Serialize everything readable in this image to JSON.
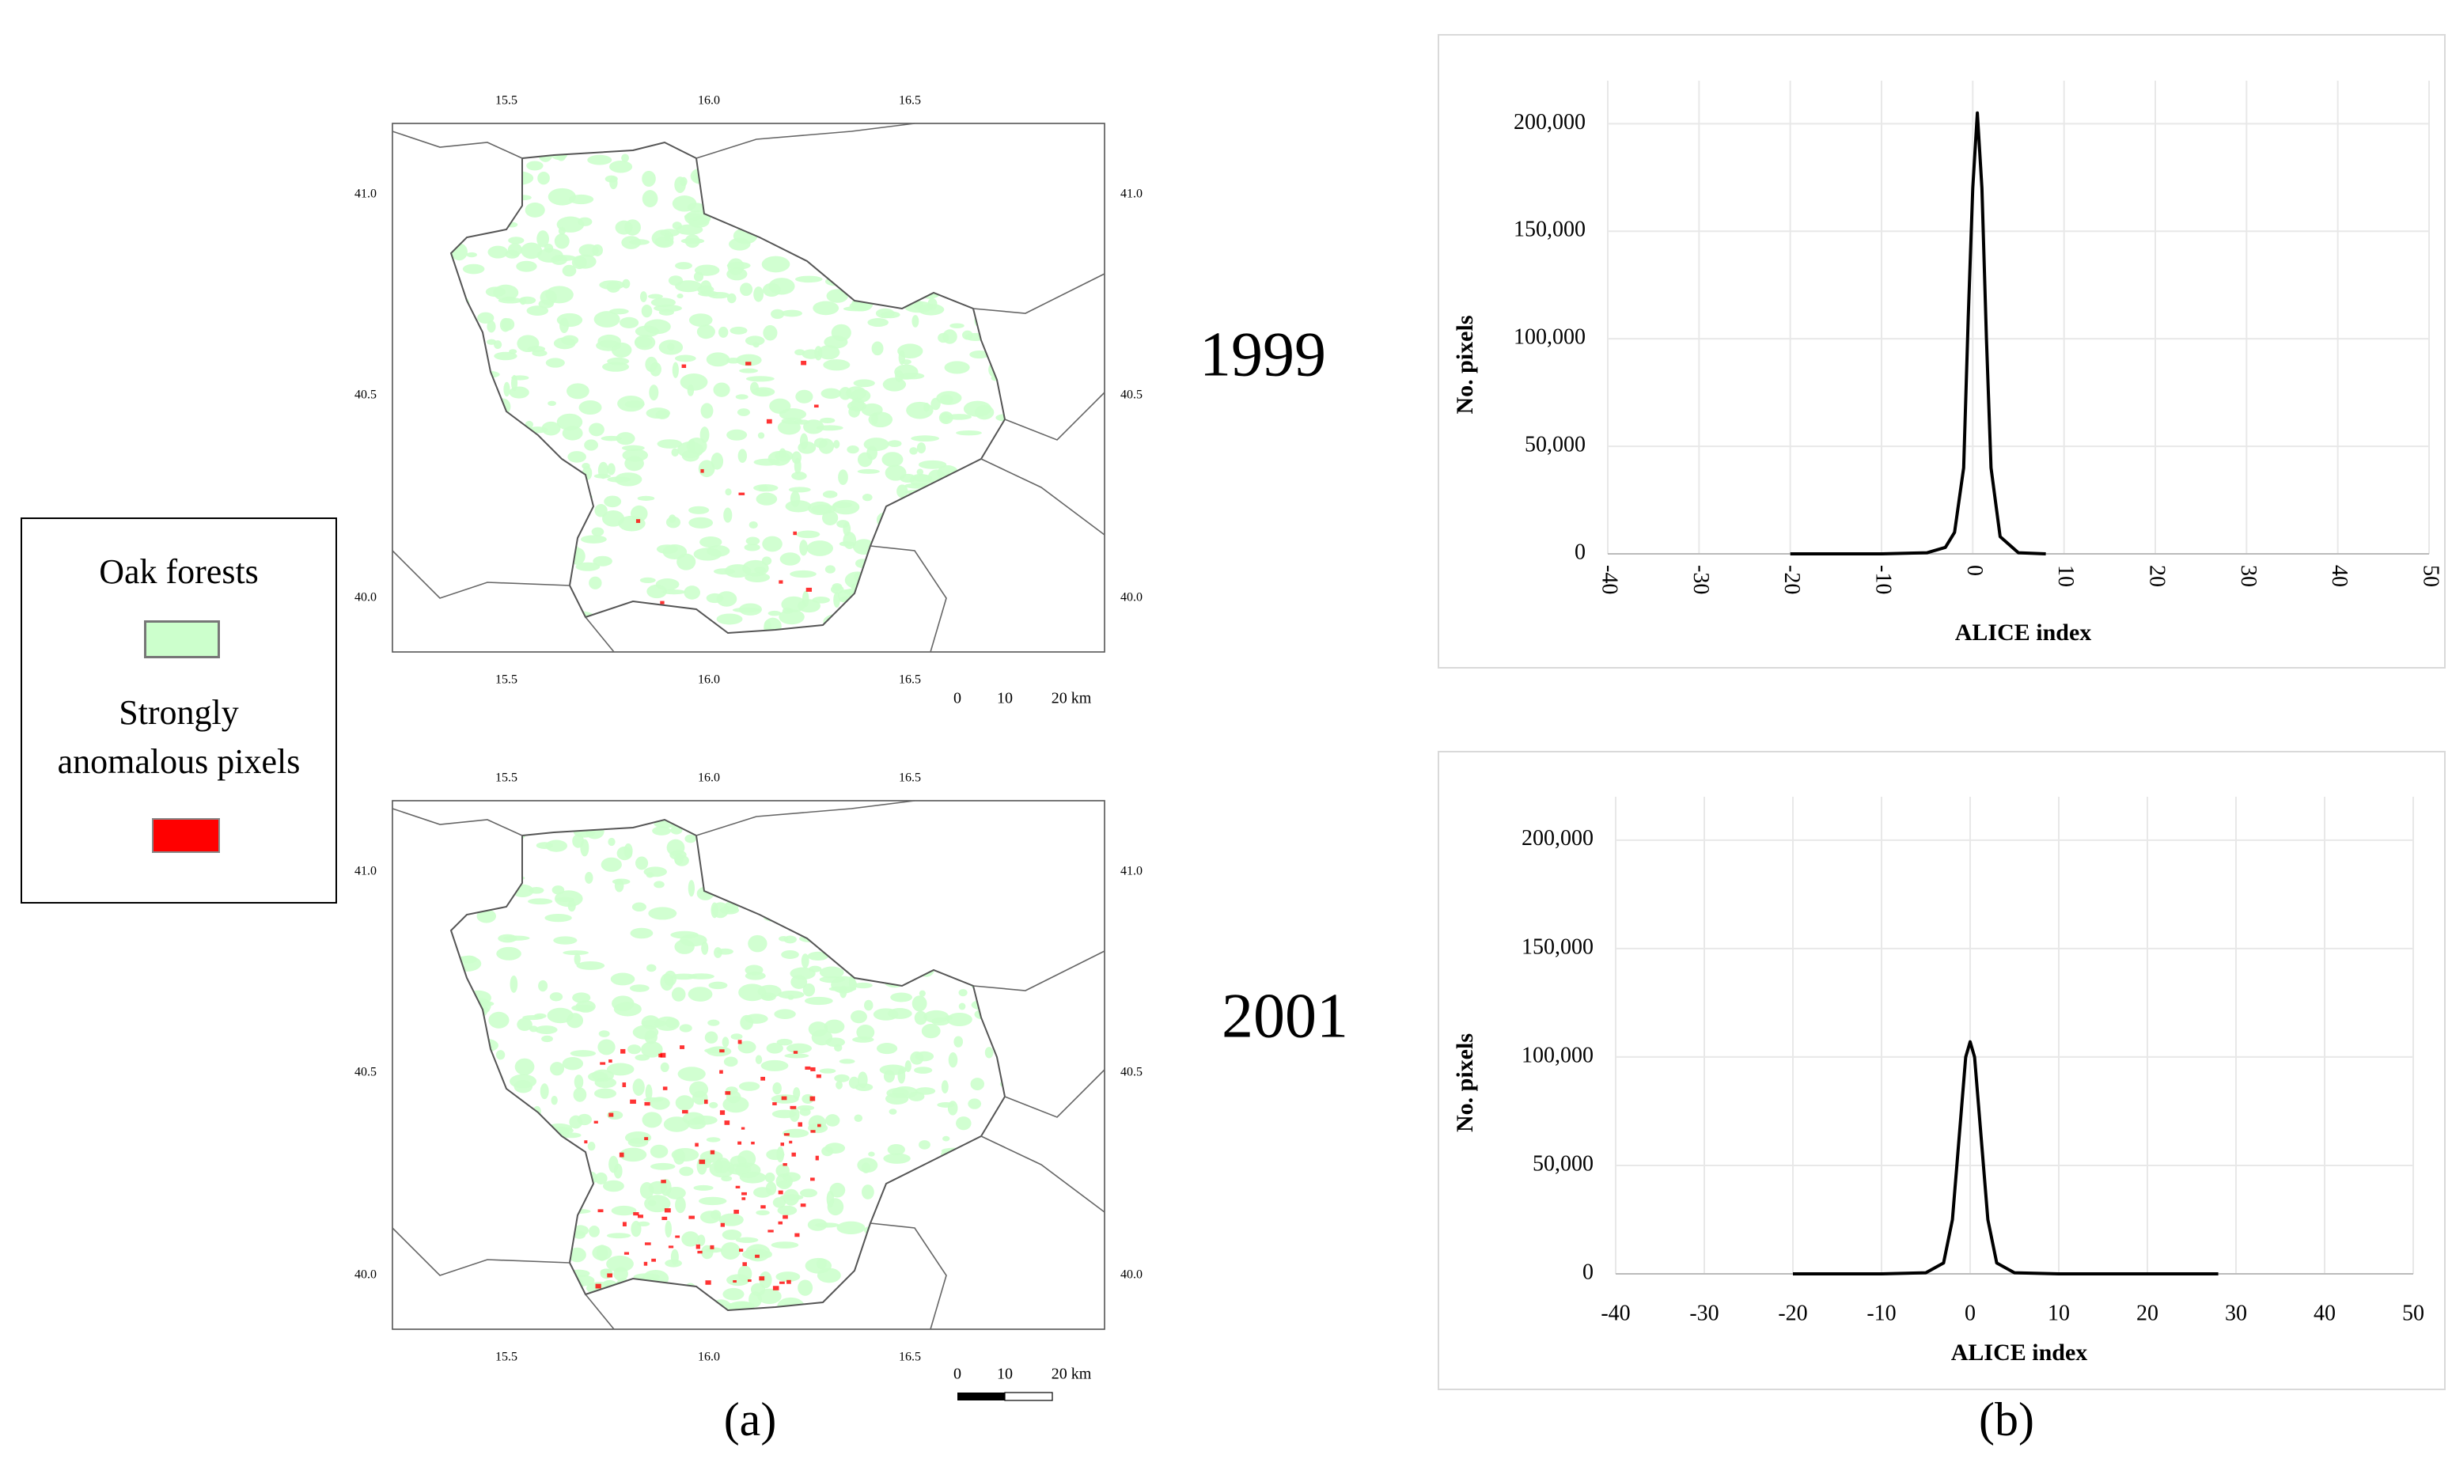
{
  "maps": {
    "lon_ticks": [
      "15.5",
      "16.0",
      "16.5"
    ],
    "lat_ticks": [
      "41.0",
      "40.5",
      "40.0"
    ],
    "scale_labels": [
      "0",
      "10",
      "20 km"
    ],
    "years": [
      "1999",
      "2001"
    ]
  },
  "legend": {
    "items": [
      {
        "label": "Oak forests",
        "color": "#ccffcc"
      },
      {
        "label": "Strongly anomalous pixels",
        "color": "#ff0000"
      }
    ]
  },
  "panel_labels": [
    "(a)",
    "(b)"
  ],
  "chart_data": [
    {
      "type": "line",
      "xlabel": "ALICE index",
      "ylabel": "No. pixels",
      "x": [
        -20,
        -15,
        -10,
        -5,
        -3,
        -2,
        -1,
        -0.5,
        0,
        0.5,
        1,
        1.5,
        2,
        3,
        5,
        8
      ],
      "values": [
        0,
        0,
        0,
        500,
        3000,
        10000,
        40000,
        110000,
        170000,
        205000,
        170000,
        100000,
        40000,
        8000,
        500,
        0
      ],
      "color": "#000000",
      "xlim": [
        -40,
        50
      ],
      "ylim": [
        0,
        220000
      ],
      "xticks": [
        -40,
        -30,
        -20,
        -10,
        0,
        10,
        20,
        30,
        40,
        50
      ],
      "yticks": [
        0,
        {
          "value": 50000,
          "label": "50,000"
        },
        {
          "value": 100000,
          "label": "100,000"
        },
        {
          "value": 150000,
          "label": "150,000"
        },
        {
          "value": 200000,
          "label": "200,000"
        }
      ],
      "grid": true,
      "xtick_labels_rotated": true
    },
    {
      "type": "line",
      "xlabel": "ALICE index",
      "ylabel": "No. pixels",
      "x": [
        -20,
        -15,
        -10,
        -5,
        -3,
        -2,
        -1,
        -0.5,
        0,
        0.5,
        1,
        2,
        3,
        5,
        10,
        18,
        28
      ],
      "values": [
        0,
        0,
        0,
        500,
        5000,
        25000,
        75000,
        100000,
        107000,
        100000,
        75000,
        25000,
        5000,
        500,
        0,
        0,
        0
      ],
      "color": "#000000",
      "xlim": [
        -40,
        50
      ],
      "ylim": [
        0,
        220000
      ],
      "xticks": [
        -40,
        -30,
        -20,
        -10,
        0,
        10,
        20,
        30,
        40,
        50
      ],
      "yticks": [
        0,
        {
          "value": 50000,
          "label": "50,000"
        },
        {
          "value": 100000,
          "label": "100,000"
        },
        {
          "value": 150000,
          "label": "150,000"
        },
        {
          "value": 200000,
          "label": "200,000"
        }
      ],
      "grid": true,
      "xtick_labels_rotated": false
    }
  ]
}
